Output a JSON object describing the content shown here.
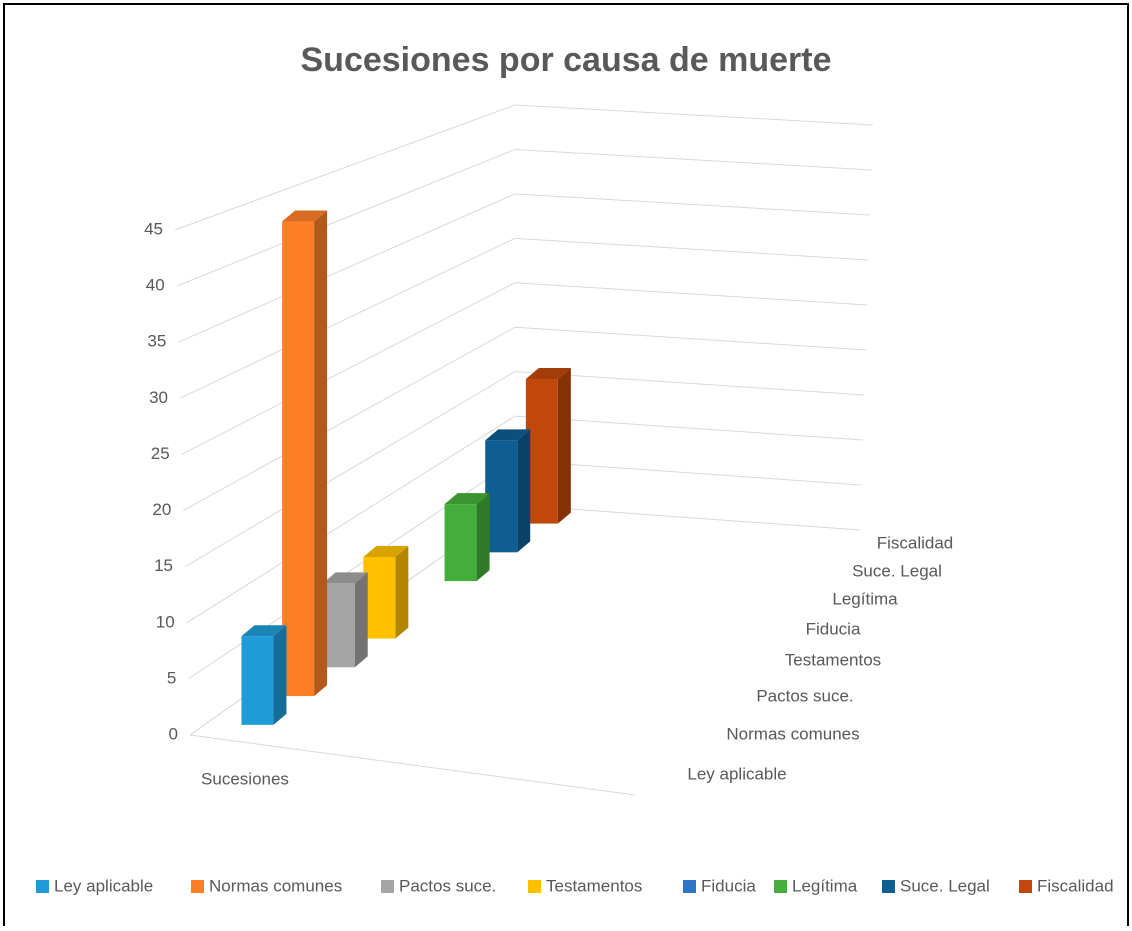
{
  "chart_data": {
    "type": "bar3d",
    "title": "Sucesiones por causa de muerte",
    "categories": [
      "Sucesiones"
    ],
    "series": [
      {
        "name": "Ley aplicable",
        "color": "#1f9bd7",
        "values": [
          8
        ]
      },
      {
        "name": "Normas comunes",
        "color": "#ff7f27",
        "values": [
          44
        ]
      },
      {
        "name": "Pactos suce.",
        "color": "#a5a5a5",
        "values": [
          8
        ]
      },
      {
        "name": "Testamentos",
        "color": "#ffc000",
        "values": [
          8
        ]
      },
      {
        "name": "Fiducia",
        "color": "#2e75c6",
        "values": [
          0
        ]
      },
      {
        "name": "Legítima",
        "color": "#45ad3a",
        "values": [
          8
        ]
      },
      {
        "name": "Suce. Legal",
        "color": "#0e5d93",
        "values": [
          12
        ]
      },
      {
        "name": "Fiscalidad",
        "color": "#c0480a",
        "values": [
          16
        ]
      }
    ],
    "ylim": [
      0,
      45
    ],
    "yticks": [
      0,
      5,
      10,
      15,
      20,
      25,
      30,
      35,
      40,
      45
    ],
    "grid": true,
    "legend": "bottom"
  }
}
